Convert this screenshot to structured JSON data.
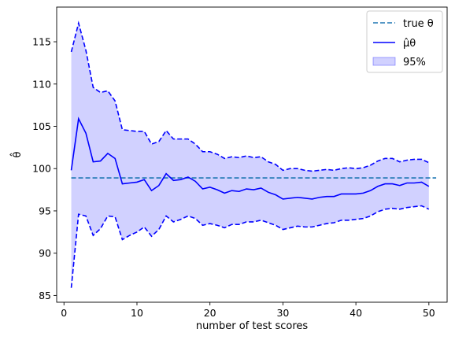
{
  "chart_data": {
    "type": "line",
    "xlabel": "number of test scores",
    "ylabel": "θ̂",
    "xlim": [
      -1,
      52.5
    ],
    "ylim": [
      84.2,
      119.1
    ],
    "xticks": [
      0,
      10,
      20,
      30,
      40,
      50
    ],
    "yticks": [
      85,
      90,
      95,
      100,
      105,
      110,
      115
    ],
    "grid": false,
    "legend_position": "top-right",
    "colors": {
      "true_line": "#1f77b4",
      "estimate": "#0000ff",
      "band_fill": "#ccccff",
      "band_edge": "#0000ff"
    },
    "x": [
      1,
      2,
      3,
      4,
      5,
      6,
      7,
      8,
      9,
      10,
      11,
      12,
      13,
      14,
      15,
      16,
      17,
      18,
      19,
      20,
      21,
      22,
      23,
      24,
      25,
      26,
      27,
      28,
      29,
      30,
      31,
      32,
      33,
      34,
      35,
      36,
      37,
      38,
      39,
      40,
      41,
      42,
      43,
      44,
      45,
      46,
      47,
      48,
      49,
      50
    ],
    "true_theta": {
      "name": "true θ",
      "x": [
        1,
        51
      ],
      "value": 98.9
    },
    "estimate": {
      "name": "μ̂_θ",
      "values": [
        99.8,
        105.9,
        104.2,
        100.8,
        100.9,
        101.8,
        101.2,
        98.2,
        98.3,
        98.4,
        98.7,
        97.4,
        98.0,
        99.4,
        98.6,
        98.7,
        99.0,
        98.5,
        97.6,
        97.8,
        97.5,
        97.1,
        97.4,
        97.3,
        97.6,
        97.5,
        97.7,
        97.2,
        96.9,
        96.4,
        96.5,
        96.6,
        96.5,
        96.4,
        96.6,
        96.7,
        96.7,
        97.0,
        97.0,
        97.0,
        97.1,
        97.4,
        97.9,
        98.2,
        98.2,
        98.0,
        98.3,
        98.3,
        98.4,
        97.9
      ]
    },
    "band": {
      "name": "95%",
      "upper": [
        113.8,
        117.2,
        114.0,
        109.6,
        109.0,
        109.2,
        108.0,
        104.6,
        104.5,
        104.4,
        104.4,
        102.9,
        103.2,
        104.5,
        103.5,
        103.5,
        103.5,
        102.9,
        102.0,
        102.0,
        101.7,
        101.2,
        101.4,
        101.3,
        101.5,
        101.3,
        101.4,
        100.8,
        100.5,
        99.8,
        100.0,
        100.0,
        99.8,
        99.7,
        99.8,
        99.9,
        99.8,
        100.0,
        100.1,
        100.0,
        100.1,
        100.4,
        100.9,
        101.2,
        101.2,
        100.8,
        101.0,
        101.1,
        101.1,
        100.7
      ],
      "lower": [
        85.9,
        94.6,
        94.4,
        92.1,
        92.9,
        94.4,
        94.3,
        91.6,
        92.1,
        92.5,
        93.1,
        92.0,
        92.8,
        94.4,
        93.7,
        94.0,
        94.4,
        94.1,
        93.3,
        93.5,
        93.3,
        93.0,
        93.4,
        93.4,
        93.7,
        93.7,
        93.9,
        93.6,
        93.3,
        92.8,
        93.0,
        93.2,
        93.1,
        93.1,
        93.3,
        93.5,
        93.6,
        93.9,
        93.9,
        94.0,
        94.1,
        94.4,
        94.9,
        95.2,
        95.3,
        95.2,
        95.4,
        95.5,
        95.6,
        95.2
      ]
    },
    "legend": [
      {
        "key": "true_theta",
        "label": "true θ"
      },
      {
        "key": "estimate",
        "label": "μ̂θ"
      },
      {
        "key": "band",
        "label": "95%"
      }
    ]
  }
}
